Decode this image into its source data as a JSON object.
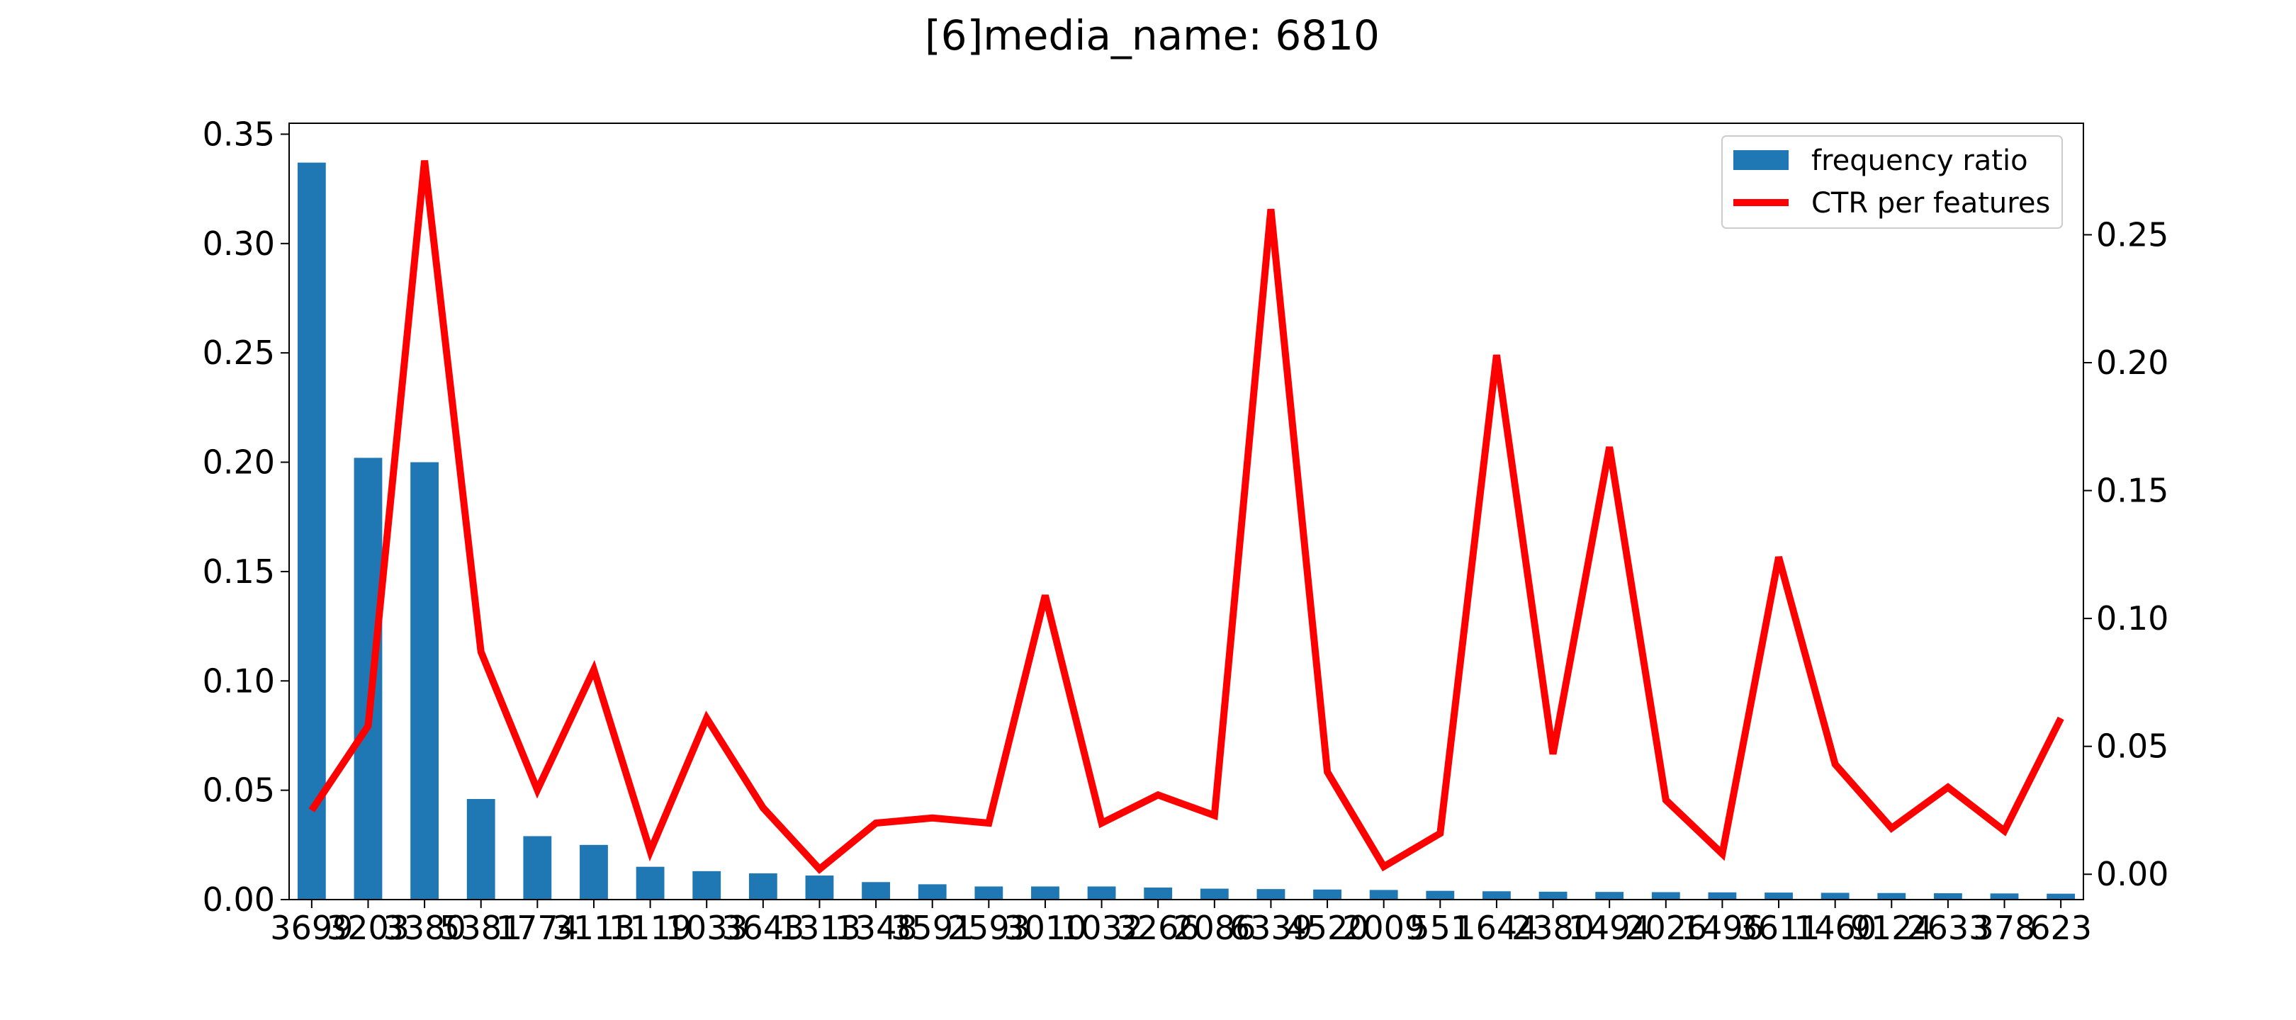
{
  "chart_data": {
    "type": "bar+line",
    "title": "[6]media_name: 6810",
    "xlabel": "",
    "ylabel": "",
    "categories": [
      "3699",
      "3203",
      "3380",
      "5381",
      "1774",
      "3113",
      "1119",
      "1033",
      "3643",
      "1313",
      "1348",
      "3591",
      "2593",
      "3010",
      "1032",
      "3266",
      "2086",
      "6339",
      "4520",
      "2009",
      "551",
      "1644",
      "2380",
      "1494",
      "2026",
      "1496",
      "3611",
      "1460",
      "9124",
      "2633",
      "378",
      "623"
    ],
    "series": [
      {
        "name": "frequency ratio",
        "type": "bar",
        "axis": "left",
        "color": "#1f77b4",
        "values": [
          0.337,
          0.202,
          0.2,
          0.046,
          0.029,
          0.025,
          0.015,
          0.013,
          0.012,
          0.011,
          0.008,
          0.007,
          0.006,
          0.006,
          0.006,
          0.0055,
          0.005,
          0.0048,
          0.0046,
          0.0044,
          0.004,
          0.0038,
          0.0036,
          0.0035,
          0.0034,
          0.0033,
          0.0032,
          0.0031,
          0.003,
          0.0029,
          0.0028,
          0.0027
        ]
      },
      {
        "name": "CTR per features",
        "type": "line",
        "axis": "right",
        "color": "#ff0000",
        "values": [
          0.025,
          0.058,
          0.279,
          0.087,
          0.033,
          0.08,
          0.009,
          0.061,
          0.026,
          0.002,
          0.02,
          0.022,
          0.02,
          0.109,
          0.02,
          0.031,
          0.023,
          0.26,
          0.04,
          0.003,
          0.016,
          0.203,
          0.047,
          0.167,
          0.029,
          0.008,
          0.124,
          0.043,
          0.018,
          0.034,
          0.017,
          0.061
        ]
      }
    ],
    "y_left": {
      "ylim": [
        0,
        0.355
      ],
      "ticks": [
        "0.00",
        "0.05",
        "0.10",
        "0.15",
        "0.20",
        "0.25",
        "0.30",
        "0.35"
      ]
    },
    "y_right": {
      "ylim": [
        -0.0099,
        0.2936
      ],
      "ticks": [
        "0.00",
        "0.05",
        "0.10",
        "0.15",
        "0.20",
        "0.25"
      ]
    },
    "legend_position": "top-right",
    "grid": false
  }
}
